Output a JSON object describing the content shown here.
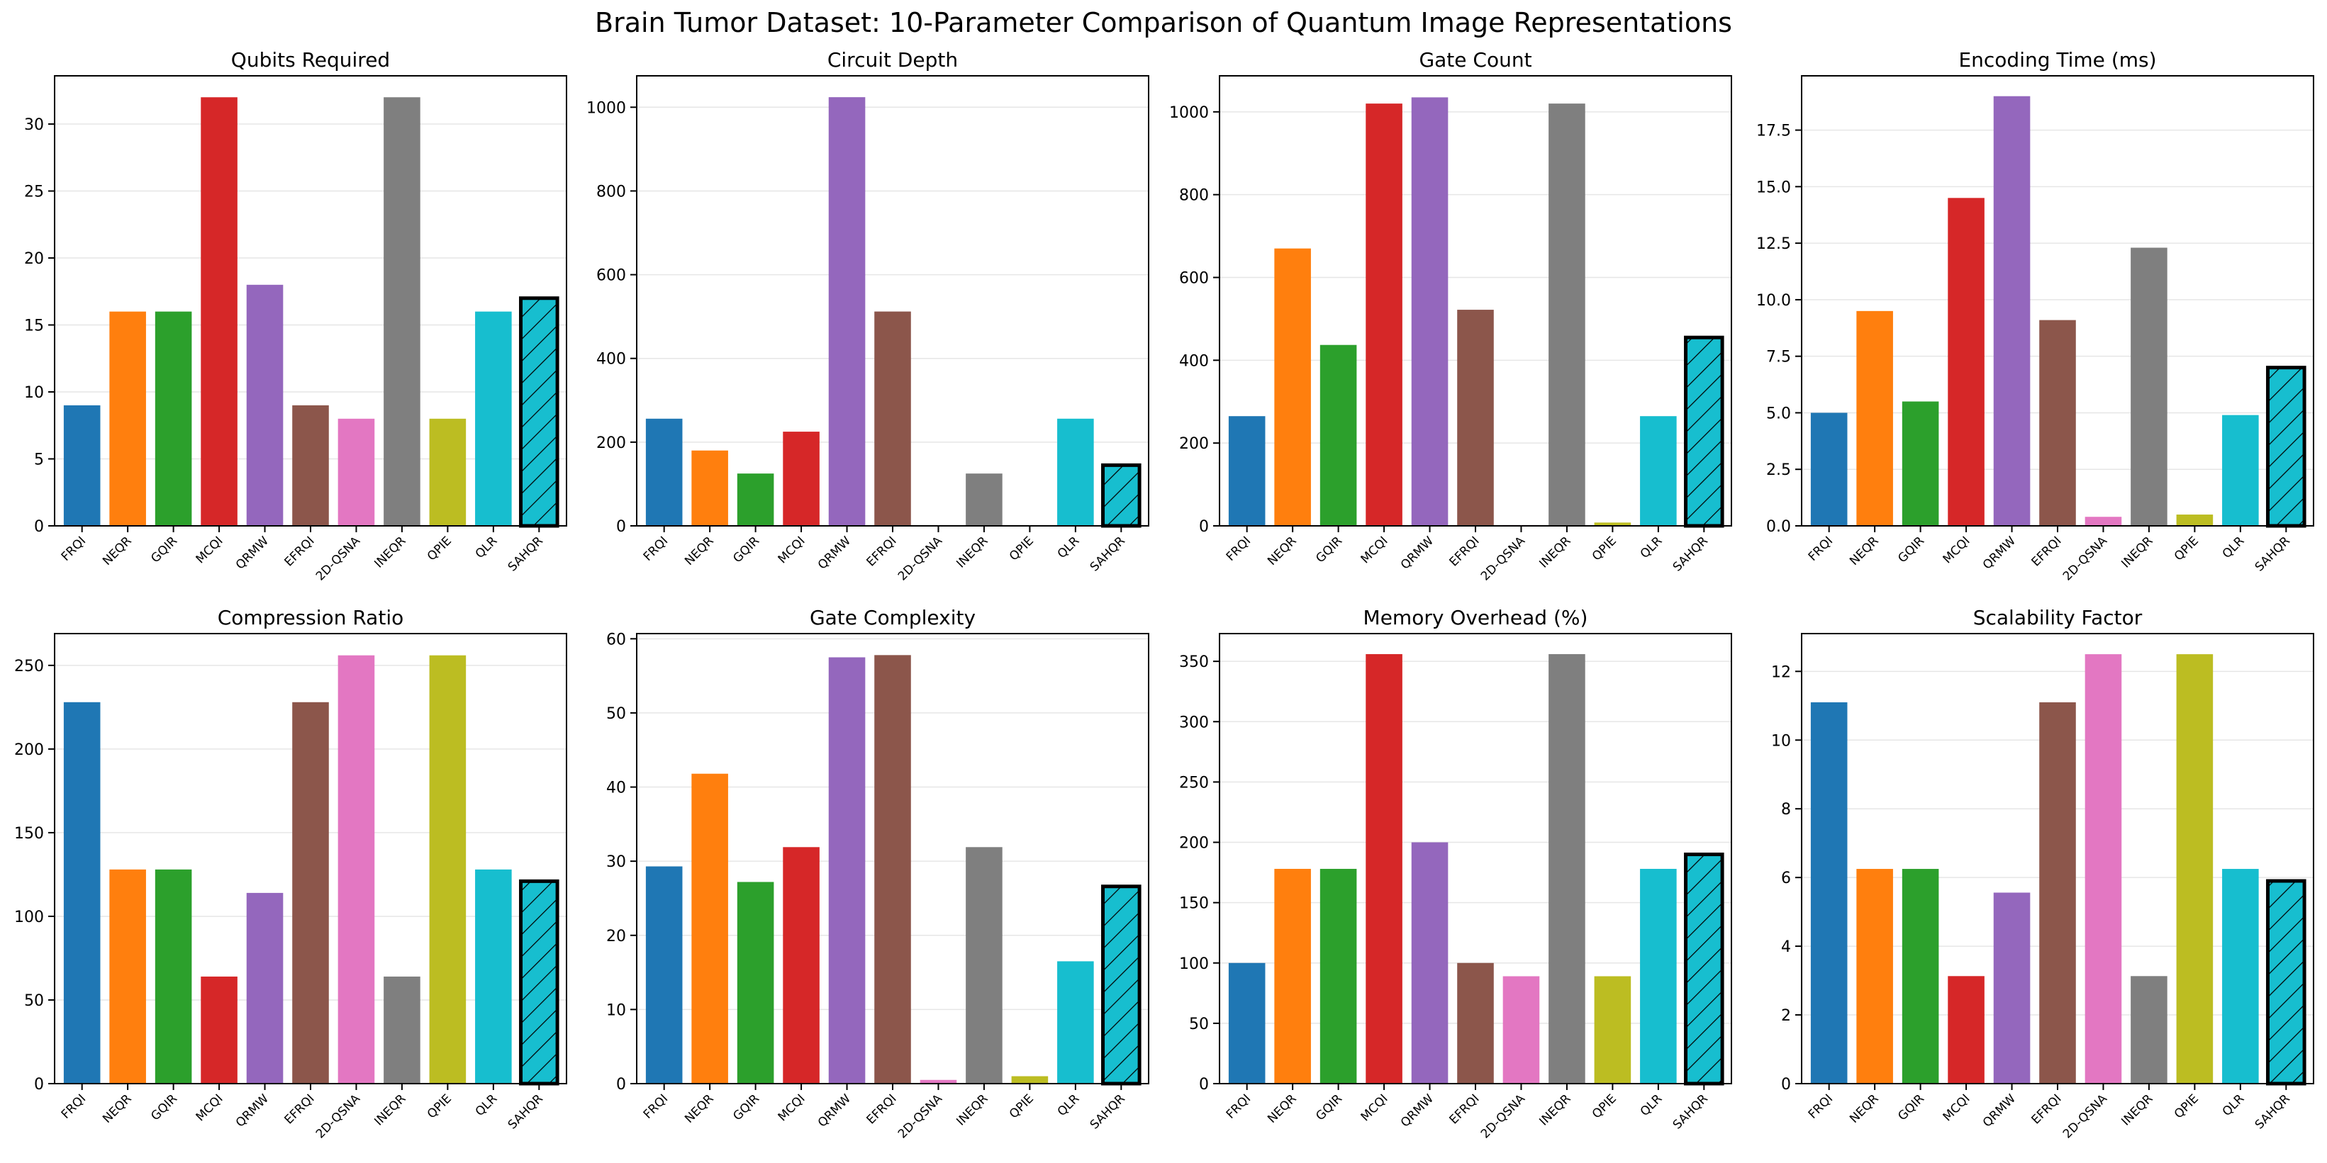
{
  "figure": {
    "title": "Brain Tumor Dataset: 10-Parameter Comparison of Quantum Image Representations"
  },
  "colors": {
    "bars": [
      "#1f77b4",
      "#ff7f0e",
      "#2ca02c",
      "#d62728",
      "#9467bd",
      "#8c564b",
      "#e377c2",
      "#7f7f7f",
      "#bcbd22",
      "#17becf",
      "#17becf"
    ],
    "highlight_edge": "#000000",
    "grid": "#e6e6e6"
  },
  "chart_data": [
    {
      "type": "bar",
      "title": "Qubits Required",
      "categories": [
        "FRQI",
        "NEQR",
        "GQIR",
        "MCQI",
        "QRMW",
        "EFRQI",
        "2D-QSNA",
        "INEQR",
        "QPIE",
        "QLR",
        "SAHQR"
      ],
      "values": [
        9,
        16,
        16,
        32,
        18,
        9,
        8,
        32,
        8,
        16,
        17
      ],
      "ylim": [
        0,
        33.6
      ],
      "yticks": [
        0,
        5,
        10,
        15,
        20,
        25,
        30
      ],
      "ytick_labels": [
        "0",
        "5",
        "10",
        "15",
        "20",
        "25",
        "30"
      ],
      "highlight": "SAHQR",
      "grid": "y"
    },
    {
      "type": "bar",
      "title": "Circuit Depth",
      "categories": [
        "FRQI",
        "NEQR",
        "GQIR",
        "MCQI",
        "QRMW",
        "EFRQI",
        "2D-QSNA",
        "INEQR",
        "QPIE",
        "QLR",
        "SAHQR"
      ],
      "values": [
        256,
        180,
        125,
        225,
        1024,
        512,
        0,
        125,
        0,
        256,
        145
      ],
      "ylim": [
        0,
        1075
      ],
      "yticks": [
        0,
        200,
        400,
        600,
        800,
        1000
      ],
      "ytick_labels": [
        "0",
        "200",
        "400",
        "600",
        "800",
        "1000"
      ],
      "highlight": "SAHQR",
      "grid": "y"
    },
    {
      "type": "bar",
      "title": "Gate Count",
      "categories": [
        "FRQI",
        "NEQR",
        "GQIR",
        "MCQI",
        "QRMW",
        "EFRQI",
        "2D-QSNA",
        "INEQR",
        "QPIE",
        "QLR",
        "SAHQR"
      ],
      "values": [
        265,
        670,
        437,
        1020,
        1035,
        522,
        2,
        1020,
        8,
        265,
        455
      ],
      "ylim": [
        0,
        1087
      ],
      "yticks": [
        0,
        200,
        400,
        600,
        800,
        1000
      ],
      "ytick_labels": [
        "0",
        "200",
        "400",
        "600",
        "800",
        "1000"
      ],
      "highlight": "SAHQR",
      "grid": "y"
    },
    {
      "type": "bar",
      "title": "Encoding Time (ms)",
      "categories": [
        "FRQI",
        "NEQR",
        "GQIR",
        "MCQI",
        "QRMW",
        "EFRQI",
        "2D-QSNA",
        "INEQR",
        "QPIE",
        "QLR",
        "SAHQR"
      ],
      "values": [
        5.0,
        9.5,
        5.5,
        14.5,
        19.0,
        9.1,
        0.4,
        12.3,
        0.5,
        4.9,
        7.0
      ],
      "ylim": [
        0,
        19.9
      ],
      "yticks": [
        0,
        2.5,
        5.0,
        7.5,
        10.0,
        12.5,
        15.0,
        17.5
      ],
      "ytick_labels": [
        "0.0",
        "2.5",
        "5.0",
        "7.5",
        "10.0",
        "12.5",
        "15.0",
        "17.5"
      ],
      "highlight": "SAHQR",
      "grid": "y"
    },
    {
      "type": "bar",
      "title": "Compression Ratio",
      "categories": [
        "FRQI",
        "NEQR",
        "GQIR",
        "MCQI",
        "QRMW",
        "EFRQI",
        "2D-QSNA",
        "INEQR",
        "QPIE",
        "QLR",
        "SAHQR"
      ],
      "values": [
        228,
        128,
        128,
        64,
        114,
        228,
        256,
        64,
        256,
        128,
        121
      ],
      "ylim": [
        0,
        269
      ],
      "yticks": [
        0,
        50,
        100,
        150,
        200,
        250
      ],
      "ytick_labels": [
        "0",
        "50",
        "100",
        "150",
        "200",
        "250"
      ],
      "highlight": "SAHQR",
      "grid": "y"
    },
    {
      "type": "bar",
      "title": "Gate Complexity",
      "categories": [
        "FRQI",
        "NEQR",
        "GQIR",
        "MCQI",
        "QRMW",
        "EFRQI",
        "2D-QSNA",
        "INEQR",
        "QPIE",
        "QLR",
        "SAHQR"
      ],
      "values": [
        29.3,
        41.8,
        27.2,
        31.9,
        57.5,
        57.8,
        0.5,
        31.9,
        1.0,
        16.5,
        26.6
      ],
      "ylim": [
        0,
        60.7
      ],
      "yticks": [
        0,
        10,
        20,
        30,
        40,
        50,
        60
      ],
      "ytick_labels": [
        "0",
        "10",
        "20",
        "30",
        "40",
        "50",
        "60"
      ],
      "highlight": "SAHQR",
      "grid": "y"
    },
    {
      "type": "bar",
      "title": "Memory Overhead (%)",
      "categories": [
        "FRQI",
        "NEQR",
        "GQIR",
        "MCQI",
        "QRMW",
        "EFRQI",
        "2D-QSNA",
        "INEQR",
        "QPIE",
        "QLR",
        "SAHQR"
      ],
      "values": [
        100,
        178,
        178,
        356,
        200,
        100,
        89,
        356,
        89,
        178,
        190
      ],
      "ylim": [
        0,
        373
      ],
      "yticks": [
        0,
        50,
        100,
        150,
        200,
        250,
        300,
        350
      ],
      "ytick_labels": [
        "0",
        "50",
        "100",
        "150",
        "200",
        "250",
        "300",
        "350"
      ],
      "highlight": "SAHQR",
      "grid": "y"
    },
    {
      "type": "bar",
      "title": "Scalability Factor",
      "categories": [
        "FRQI",
        "NEQR",
        "GQIR",
        "MCQI",
        "QRMW",
        "EFRQI",
        "2D-QSNA",
        "INEQR",
        "QPIE",
        "QLR",
        "SAHQR"
      ],
      "values": [
        11.1,
        6.25,
        6.25,
        3.13,
        5.56,
        11.1,
        12.5,
        3.13,
        12.5,
        6.25,
        5.9
      ],
      "ylim": [
        0,
        13.1
      ],
      "yticks": [
        0,
        2,
        4,
        6,
        8,
        10,
        12
      ],
      "ytick_labels": [
        "0",
        "2",
        "4",
        "6",
        "8",
        "10",
        "12"
      ],
      "highlight": "SAHQR",
      "grid": "y"
    }
  ]
}
